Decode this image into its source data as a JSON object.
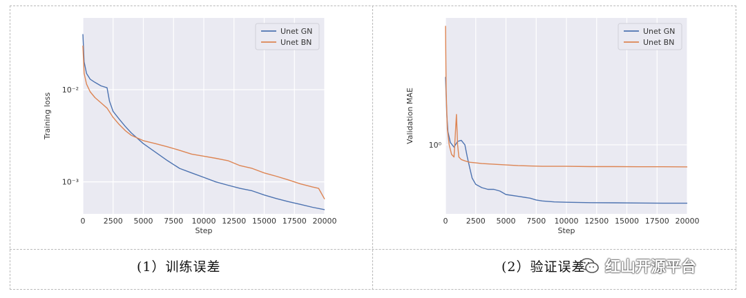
{
  "chart_data": [
    {
      "type": "line",
      "title": "",
      "xlabel": "Step",
      "ylabel": "Training loss",
      "yscale": "log",
      "xlim": [
        0,
        20000
      ],
      "ylim": [
        0.00045,
        0.06
      ],
      "xticks": [
        0,
        2500,
        5000,
        7500,
        10000,
        12500,
        15000,
        17500,
        20000
      ],
      "xtick_labels": [
        "0",
        "2500",
        "5000",
        "7500",
        "10000",
        "12500",
        "15000",
        "17500",
        "20000"
      ],
      "yticks": [
        0.01,
        0.001
      ],
      "ytick_labels": [
        "10⁻²",
        "10⁻³"
      ],
      "grid": true,
      "legend_position": "top-right",
      "series": [
        {
          "name": "Unet GN",
          "color": "#4c72b0",
          "x": [
            0,
            100,
            300,
            600,
            1000,
            1500,
            2000,
            2200,
            2500,
            3000,
            3500,
            4000,
            5000,
            6000,
            7000,
            8000,
            9000,
            10000,
            11000,
            12000,
            13000,
            14000,
            15000,
            16000,
            17000,
            18000,
            19000,
            20000
          ],
          "y": [
            0.04,
            0.02,
            0.015,
            0.013,
            0.012,
            0.011,
            0.0105,
            0.0075,
            0.0058,
            0.0048,
            0.004,
            0.0034,
            0.0026,
            0.0021,
            0.0017,
            0.0014,
            0.00125,
            0.00112,
            0.001,
            0.00092,
            0.00085,
            0.0008,
            0.00072,
            0.00066,
            0.00061,
            0.00057,
            0.00053,
            0.0005
          ]
        },
        {
          "name": "Unet BN",
          "color": "#dd8452",
          "x": [
            0,
            100,
            300,
            600,
            1000,
            1500,
            2000,
            2500,
            3000,
            3500,
            4000,
            5000,
            6000,
            7000,
            8000,
            9000,
            10000,
            11000,
            12000,
            13000,
            14000,
            15000,
            16000,
            17000,
            18000,
            19000,
            19500,
            20000
          ],
          "y": [
            0.03,
            0.015,
            0.0115,
            0.0095,
            0.0082,
            0.0072,
            0.0063,
            0.005,
            0.0042,
            0.0036,
            0.0032,
            0.0028,
            0.0026,
            0.0024,
            0.0022,
            0.002,
            0.0019,
            0.0018,
            0.0017,
            0.0015,
            0.0014,
            0.00125,
            0.00115,
            0.00105,
            0.00095,
            0.00088,
            0.00085,
            0.00065
          ]
        }
      ]
    },
    {
      "type": "line",
      "title": "",
      "xlabel": "Step",
      "ylabel": "Validation MAE",
      "yscale": "log",
      "xlim": [
        0,
        20000
      ],
      "ylim": [
        0.55,
        3.0
      ],
      "xticks": [
        0,
        2500,
        5000,
        7500,
        10000,
        12500,
        15000,
        17500,
        20000
      ],
      "xtick_labels": [
        "0",
        "2500",
        "5000",
        "7500",
        "10000",
        "12500",
        "15000",
        "17500",
        "20000"
      ],
      "yticks": [
        1.0
      ],
      "ytick_labels": [
        "10⁰"
      ],
      "grid": true,
      "legend_position": "top-right",
      "series": [
        {
          "name": "Unet GN",
          "color": "#4c72b0",
          "x": [
            0,
            100,
            200,
            400,
            700,
            1000,
            1300,
            1600,
            1800,
            2000,
            2200,
            2500,
            3000,
            3500,
            4000,
            4500,
            5000,
            6000,
            7000,
            7500,
            8000,
            9000,
            10000,
            12000,
            14000,
            16000,
            18000,
            20000
          ],
          "y": [
            1.8,
            1.3,
            1.12,
            1.02,
            0.98,
            1.03,
            1.04,
            1.0,
            0.9,
            0.82,
            0.75,
            0.71,
            0.69,
            0.68,
            0.68,
            0.67,
            0.65,
            0.64,
            0.63,
            0.62,
            0.615,
            0.61,
            0.608,
            0.606,
            0.605,
            0.604,
            0.603,
            0.603
          ]
        },
        {
          "name": "Unet BN",
          "color": "#dd8452",
          "x": [
            0,
            50,
            150,
            300,
            500,
            700,
            900,
            1000,
            1100,
            1300,
            1600,
            2000,
            2500,
            3000,
            4000,
            5000,
            6000,
            8000,
            10000,
            12000,
            14000,
            16000,
            18000,
            20000
          ],
          "y": [
            2.8,
            1.6,
            1.15,
            1.0,
            0.92,
            0.9,
            1.3,
            1.0,
            0.9,
            0.88,
            0.87,
            0.86,
            0.855,
            0.85,
            0.845,
            0.84,
            0.835,
            0.83,
            0.83,
            0.828,
            0.828,
            0.827,
            0.827,
            0.826
          ]
        }
      ]
    }
  ],
  "captions": {
    "left": "(1）训练误差",
    "right": "(2）验证误差"
  },
  "watermark": {
    "text": "红山开源平台",
    "icon": "wechat-icon"
  }
}
